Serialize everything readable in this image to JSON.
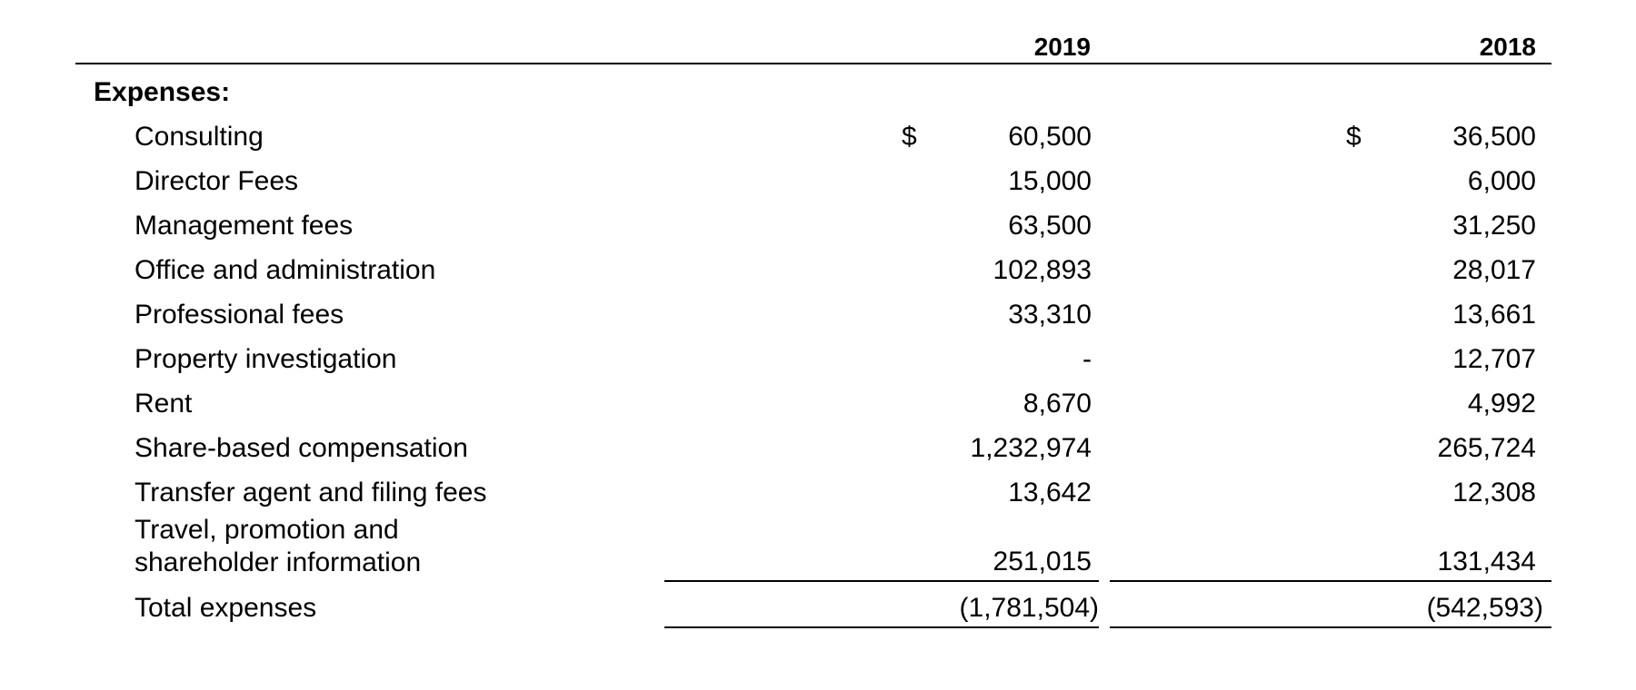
{
  "header": {
    "col_2019": "2019",
    "col_2018": "2018"
  },
  "section_label": "Expenses:",
  "currency_symbol": "$",
  "rows": [
    {
      "label": "Consulting",
      "v2019": "60,500",
      "v2018": "36,500"
    },
    {
      "label": "Director Fees",
      "v2019": "15,000",
      "v2018": "6,000"
    },
    {
      "label": "Management fees",
      "v2019": "63,500",
      "v2018": "31,250"
    },
    {
      "label": "Office and administration",
      "v2019": "102,893",
      "v2018": "28,017"
    },
    {
      "label": "Professional fees",
      "v2019": "33,310",
      "v2018": "13,661"
    },
    {
      "label": "Property investigation",
      "v2019": "-",
      "v2018": "12,707"
    },
    {
      "label": "Rent",
      "v2019": "8,670",
      "v2018": "4,992"
    },
    {
      "label": "Share-based compensation",
      "v2019": "1,232,974",
      "v2018": "265,724"
    },
    {
      "label": "Transfer agent and filing fees",
      "v2019": "13,642",
      "v2018": "12,308"
    },
    {
      "label_line1": "Travel, promotion and",
      "label_line2": "shareholder information",
      "v2019": "251,015",
      "v2018": "131,434"
    }
  ],
  "total": {
    "label": "Total expenses",
    "v2019": "(1,781,504)",
    "v2018": "(542,593)"
  }
}
